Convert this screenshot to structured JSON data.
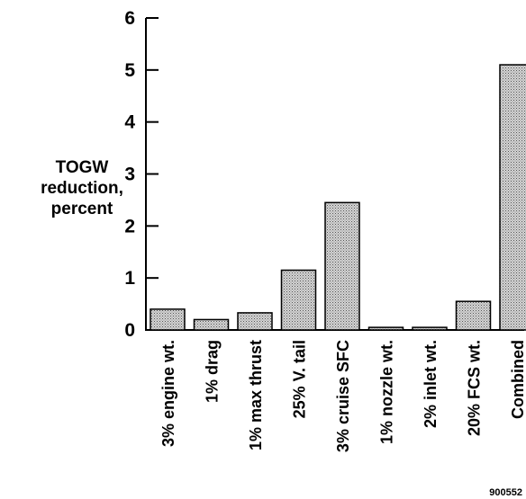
{
  "chart_data": {
    "type": "bar",
    "ylabel_lines": [
      "TOGW",
      "reduction,",
      "percent"
    ],
    "categories": [
      "3% engine wt.",
      "1% drag",
      "1% max thrust",
      "25% V. tail",
      "3% cruise SFC",
      "1% nozzle wt.",
      "2% inlet wt.",
      "20% FCS wt.",
      "Combined"
    ],
    "values": [
      0.4,
      0.2,
      0.33,
      1.15,
      2.45,
      0.05,
      0.05,
      0.55,
      5.1
    ],
    "ylim": [
      0,
      6
    ],
    "yticks": [
      "0",
      "1",
      "2",
      "3",
      "4",
      "5",
      "6"
    ],
    "grid": false,
    "bar_fill": "#c8c8c8",
    "bar_stroke": "#000000"
  },
  "figure_id": "900552"
}
